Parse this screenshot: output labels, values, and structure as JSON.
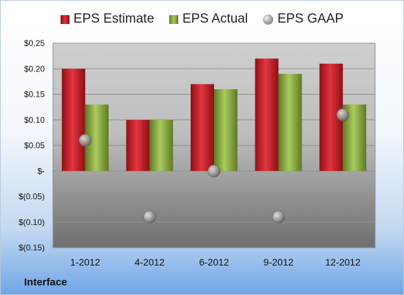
{
  "chart_data": {
    "type": "bar",
    "categories": [
      "1-2012",
      "4-2012",
      "6-2012",
      "9-2012",
      "12-2012"
    ],
    "series": [
      {
        "name": "EPS Estimate",
        "type": "bar",
        "values": [
          0.2,
          0.1,
          0.17,
          0.22,
          0.21
        ]
      },
      {
        "name": "EPS Actual",
        "type": "bar",
        "values": [
          0.13,
          0.1,
          0.16,
          0.19,
          0.13
        ]
      },
      {
        "name": "EPS GAAP",
        "type": "scatter",
        "values": [
          0.06,
          -0.09,
          0.0,
          -0.09,
          0.11
        ]
      }
    ],
    "ylim": [
      -0.15,
      0.25
    ],
    "yticks": [
      0.25,
      0.2,
      0.15,
      0.1,
      0.05,
      0,
      -0.05,
      -0.1,
      -0.15
    ],
    "ytick_labels": [
      "$0.25",
      "$0.20",
      "$0.15",
      "$0.10",
      "$0.05",
      "$-",
      "$(0.05)",
      "$(0.10)",
      "$(0.15)"
    ],
    "grid": true,
    "legend_position": "top",
    "colors": {
      "estimate": "#c8232b",
      "actual": "#8fb247",
      "gaap": "#9a9a9a"
    }
  },
  "legend": {
    "estimate_label": "EPS Estimate",
    "actual_label": "EPS Actual",
    "gaap_label": "EPS GAAP"
  },
  "branding": "Interface"
}
